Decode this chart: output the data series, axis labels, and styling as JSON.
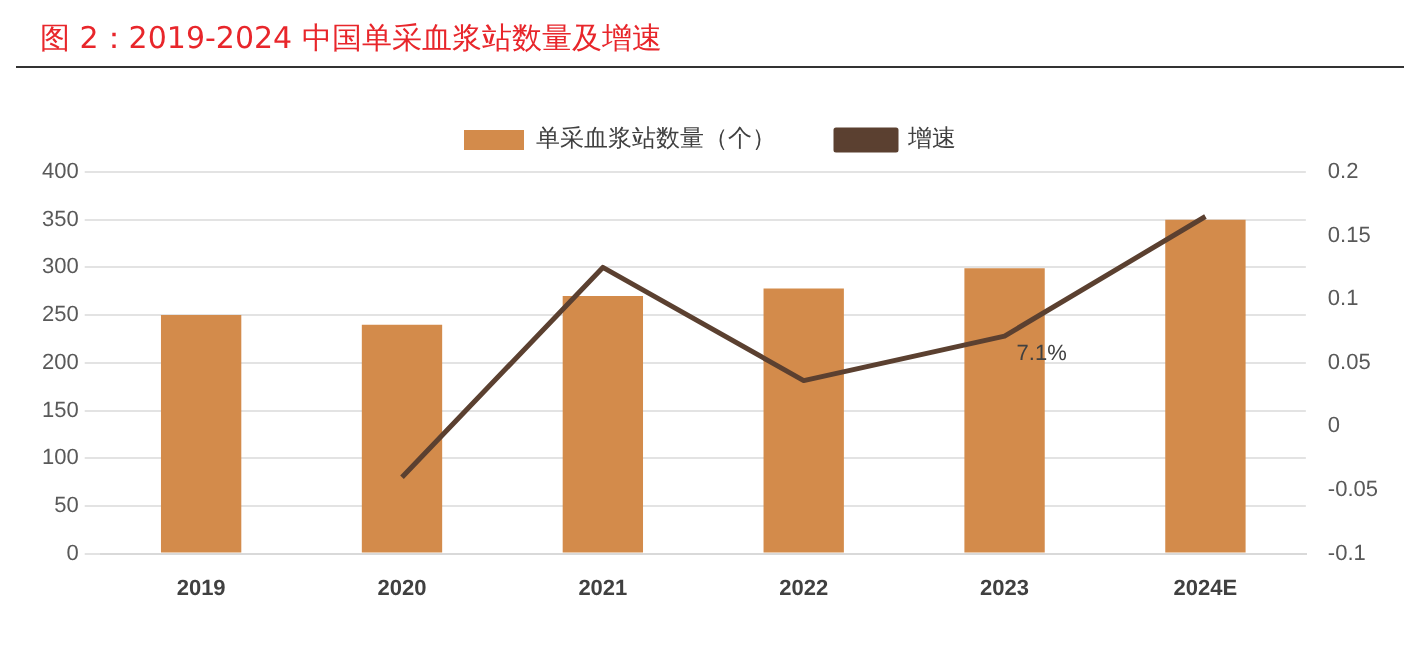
{
  "chart_data": {
    "type": "bar",
    "title": "图 2：2019-2024 中国单采血浆站数量及增速",
    "categories": [
      "2019",
      "2020",
      "2021",
      "2022",
      "2023",
      "2024E"
    ],
    "series": [
      {
        "name": "单采血浆站数量（个）",
        "color": "#d38b4b",
        "values": [
          250,
          240,
          270,
          278,
          299,
          350
        ]
      },
      {
        "name": "增速",
        "type": "line",
        "axis": "y2",
        "color": "#5b4030",
        "values": [
          null,
          -0.04,
          0.125,
          0.036,
          0.071,
          0.165
        ],
        "value_labels": [
          null,
          null,
          null,
          null,
          "7.1%",
          null
        ]
      }
    ],
    "ylim": [
      0,
      400
    ],
    "yticks": [
      0,
      50,
      100,
      150,
      200,
      250,
      300,
      350,
      400
    ],
    "y2lim": [
      -0.1,
      0.2
    ],
    "y2ticks": [
      -0.1,
      -0.05,
      0,
      0.05,
      0.1,
      0.15,
      0.2
    ],
    "grid": "y",
    "legend": "top",
    "marker": "none"
  }
}
